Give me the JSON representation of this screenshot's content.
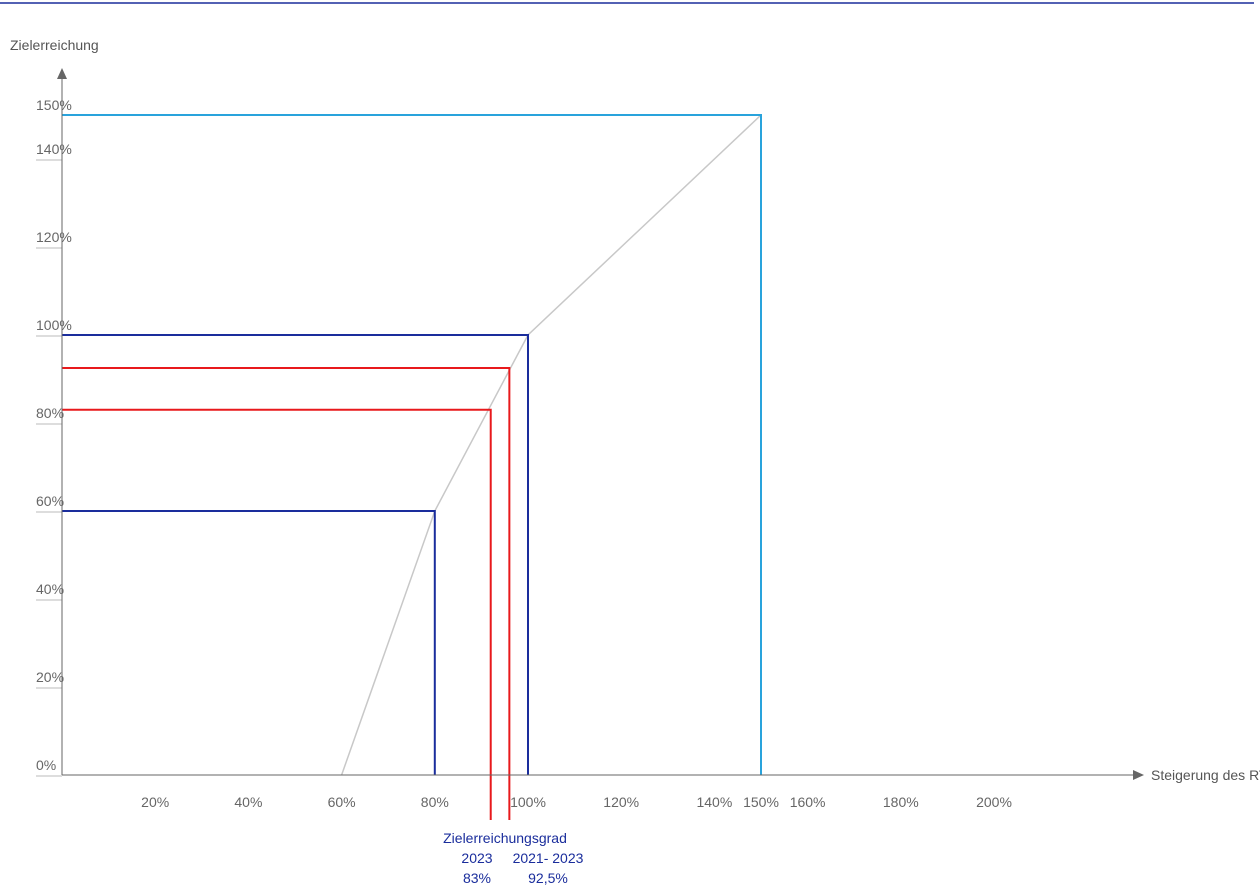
{
  "chart_data": {
    "type": "line",
    "title": "",
    "xlabel": "Steigerung des RTSR",
    "ylabel": "Zielerreichung",
    "xlim": [
      0,
      215
    ],
    "ylim": [
      0,
      150
    ],
    "x_ticks": [
      {
        "value": 20,
        "label": "20%"
      },
      {
        "value": 40,
        "label": "40%"
      },
      {
        "value": 60,
        "label": "60%"
      },
      {
        "value": 80,
        "label": "80%"
      },
      {
        "value": 100,
        "label": "100%"
      },
      {
        "value": 120,
        "label": "120%"
      },
      {
        "value": 140,
        "label": "140%"
      },
      {
        "value": 150,
        "label": "150%",
        "highlight": true
      },
      {
        "value": 160,
        "label": "160%"
      },
      {
        "value": 180,
        "label": "180%"
      },
      {
        "value": 200,
        "label": "200%"
      }
    ],
    "y_ticks": [
      {
        "value": 0,
        "label": "0%"
      },
      {
        "value": 20,
        "label": "20%"
      },
      {
        "value": 40,
        "label": "40%"
      },
      {
        "value": 60,
        "label": "60%"
      },
      {
        "value": 80,
        "label": "80%"
      },
      {
        "value": 100,
        "label": "100%"
      },
      {
        "value": 120,
        "label": "120%"
      },
      {
        "value": 140,
        "label": "140%"
      },
      {
        "value": 150,
        "label": "150%",
        "highlight": true
      }
    ],
    "curve": {
      "color": "#c8c8c8",
      "points": [
        [
          60,
          0
        ],
        [
          80,
          60
        ],
        [
          100,
          100
        ],
        [
          150,
          150
        ]
      ]
    },
    "reference_lines": [
      {
        "x": 80,
        "y": 60,
        "color": "#1a2d9c"
      },
      {
        "x": 100,
        "y": 100,
        "color": "#1a2d9c"
      },
      {
        "x": 150,
        "y": 150,
        "color": "#29a3dc"
      },
      {
        "x": 92,
        "y": 83,
        "color": "#e8191c",
        "extend_below": true
      },
      {
        "x": 96,
        "y": 92.5,
        "color": "#e8191c",
        "extend_below": true
      }
    ],
    "annotation": {
      "title": "Zielerreichungsgrad",
      "items": [
        {
          "label": "2023",
          "value": "83%"
        },
        {
          "label": "2021- 2023",
          "value": "92,5%"
        }
      ]
    }
  },
  "colors": {
    "axis": "#666666",
    "highlight": "#29a3dc",
    "dark_blue": "#1a2d9c",
    "red": "#e8191c",
    "top_rule": "#1a2d9c"
  }
}
